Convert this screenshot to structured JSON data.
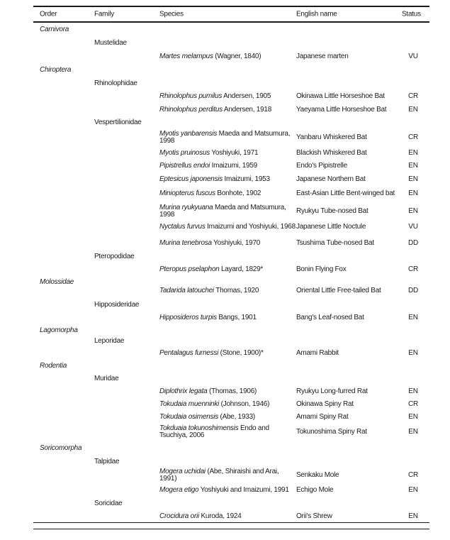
{
  "table": {
    "headers": {
      "order": "Order",
      "family": "Family",
      "species": "Species",
      "english": "English name",
      "status": "Status"
    },
    "rows": [
      {
        "type": "order",
        "text": "Carnivora"
      },
      {
        "type": "family",
        "text": "Mustelidae"
      },
      {
        "type": "species",
        "genus": "Martes melampus",
        "authority": " (Wagner, 1840)",
        "english": "Japanese marten",
        "status": "VU"
      },
      {
        "type": "order",
        "text": "Chiroptera"
      },
      {
        "type": "family",
        "text": "Rhinolophidae"
      },
      {
        "type": "species",
        "genus": "Rhinolophus pumilus",
        "authority": " Andersen, 1905",
        "english": "Okinawa Little Horseshoe Bat",
        "status": "CR"
      },
      {
        "type": "species",
        "genus": "Rhinolophus perditus",
        "authority": " Andersen, 1918",
        "english": "Yaeyama Little Horseshoe Bat",
        "status": "EN"
      },
      {
        "type": "family",
        "text": "Vespertilionidae"
      },
      {
        "type": "species",
        "genus": "Myotis yanbarensis",
        "authority": " Maeda and Matsumura, 1998",
        "english": "Yanbaru Whiskered Bat",
        "status": "CR"
      },
      {
        "type": "species",
        "genus": "Myotis pruinosus",
        "authority": " Yoshiyuki, 1971",
        "english": "Blackish Whiskered Bat",
        "status": "EN"
      },
      {
        "type": "species",
        "genus": "Pipistrellus endoi",
        "authority": " Imaizumi, 1959",
        "english": "Endo's Pipistrelle",
        "status": "EN"
      },
      {
        "type": "species",
        "genus": "Eptesicus japonensis",
        "authority": " Imaizumi, 1953",
        "english": "Japanese Northern Bat",
        "status": "EN"
      },
      {
        "type": "species",
        "genus": "Miniopterus fuscus",
        "authority": " Bonhote, 1902",
        "english": "East-Asian Little Bent-winged bat",
        "status": "EN"
      },
      {
        "type": "species",
        "genus": "Murina ryukyuana",
        "authority": " Maeda and Matsumura, 1998",
        "english": "Ryukyu Tube-nosed Bat",
        "status": "EN"
      },
      {
        "type": "species",
        "genus": "Nyctalus furvus",
        "authority": " Imaizumi and Yoshiyuki, 1968",
        "english": "Japanese Little Noctule",
        "status": "VU"
      },
      {
        "type": "species",
        "genus": "Murina tenebrosa",
        "authority": " Yoshiyuki, 1970",
        "english": "Tsushima Tube-nosed Bat",
        "status": "DD"
      },
      {
        "type": "family",
        "text": "Pteropodidae"
      },
      {
        "type": "species",
        "genus": "Pteropus pselaphon",
        "authority": " Layard, 1829*",
        "english": "Bonin Flying Fox",
        "status": "CR"
      },
      {
        "type": "order",
        "text": "Molossidae"
      },
      {
        "type": "species",
        "genus": "Tadarida latouchei",
        "authority": " Thomas, 1920",
        "english": "Oriental Little Free-tailed Bat",
        "status": "DD"
      },
      {
        "type": "family",
        "text": "Hipposideridae"
      },
      {
        "type": "species",
        "genus": "Hipposideros turpis",
        "authority": " Bangs, 1901",
        "english": "Bang's Leaf-nosed Bat",
        "status": "EN"
      },
      {
        "type": "order",
        "text": "Lagomorpha"
      },
      {
        "type": "family",
        "text": "Leporidae"
      },
      {
        "type": "species",
        "genus": "Pentalagus furnessi",
        "authority": " (Stone, 1900)*",
        "english": "Amami Rabbit",
        "status": "EN"
      },
      {
        "type": "order",
        "text": "Rodentia"
      },
      {
        "type": "family",
        "text": "Muridae"
      },
      {
        "type": "species",
        "genus": "Diplothrix legata",
        "authority": " (Thomas, 1906)",
        "english": "Ryukyu Long-furred Rat",
        "status": "EN"
      },
      {
        "type": "species",
        "genus": "Tokudaia muenninki",
        "authority": " (Johnson, 1946)",
        "english": "Okinawa Spiny Rat",
        "status": "CR"
      },
      {
        "type": "species",
        "genus": "Tokudaia osimensis",
        "authority": " (Abe, 1933)",
        "english": "Amami Spiny Rat",
        "status": "EN"
      },
      {
        "type": "species",
        "genus": "Tokduaia tokunoshimensis",
        "authority": " Endo and Tsuchiya, 2006",
        "english": "Tokunoshima Spiny Rat",
        "status": "EN"
      },
      {
        "type": "order",
        "text": "Soricomorpha"
      },
      {
        "type": "family",
        "text": "Talpidae"
      },
      {
        "type": "species",
        "genus": "Mogera uchidai",
        "authority": " (Abe, Shiraishi and Arai, 1991)",
        "english": "Senkaku Mole",
        "status": "CR"
      },
      {
        "type": "species",
        "genus": "Mogera etigo",
        "authority": " Yoshiyuki and Imaizumi, 1991",
        "english": "Echigo Mole",
        "status": "EN"
      },
      {
        "type": "family",
        "text": "Soricidae"
      },
      {
        "type": "species",
        "genus": "Crocidura orii",
        "authority": " Kuroda, 1924",
        "english": "Orii's Shrew",
        "status": "EN"
      }
    ]
  }
}
